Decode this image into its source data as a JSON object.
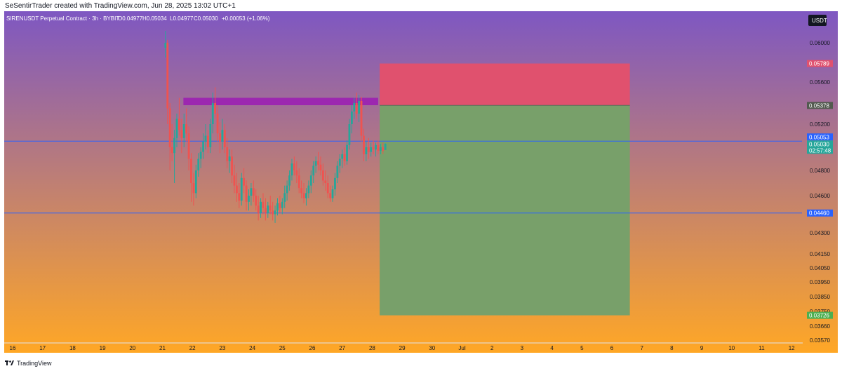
{
  "attribution": "SeSentirTrader created with TradingView.com, Jun 28, 2025 13:02 UTC+1",
  "footer": {
    "brand": "TradingView"
  },
  "colors": {
    "bg_top": "#7e57c2",
    "bg_bottom": "#ffa726",
    "up": "#26a69a",
    "down": "#ef5350",
    "stop_zone": "#e0516e",
    "target_zone": "#78a06a",
    "resistance_zone": "#9c27b0",
    "hline": "#2962ff"
  },
  "chart_data": {
    "type": "candlestick",
    "title": "SIRENUSDT Perpetual Contract · 3h · BYBIT",
    "ohlc_header": {
      "open": "O0.04977",
      "high": "H0.05034",
      "low": "L0.04977",
      "close": "C0.05030",
      "change": "+0.00053 (+1.06%)"
    },
    "currency": "USDT",
    "x_ticks": [
      "16",
      "17",
      "18",
      "19",
      "20",
      "21",
      "22",
      "23",
      "24",
      "25",
      "26",
      "27",
      "28",
      "29",
      "30",
      "Jul",
      "2",
      "3",
      "4",
      "5",
      "6",
      "7",
      "8",
      "9",
      "10",
      "11",
      "12"
    ],
    "y_ticks": [
      "0.06000",
      "0.05600",
      "0.05200",
      "0.04800",
      "0.04600",
      "0.04300",
      "0.04150",
      "0.04050",
      "0.03950",
      "0.03850",
      "0.03750",
      "0.03660",
      "0.03570"
    ],
    "price_tags": [
      {
        "label": "0.05789",
        "kind": "stop"
      },
      {
        "label": "0.05378",
        "kind": "entry"
      },
      {
        "label": "0.05053",
        "kind": "hline"
      },
      {
        "label": "0.05030",
        "kind": "last"
      },
      {
        "label": "02:57:48",
        "kind": "countdown"
      },
      {
        "label": "0.04460",
        "kind": "hline2"
      },
      {
        "label": "0.03726",
        "kind": "target"
      }
    ],
    "horizontal_lines": [
      0.05053,
      0.0446
    ],
    "resistance_zone": {
      "from_day": 21.7,
      "to_day": 28.2,
      "top": 0.0545,
      "bottom": 0.0538
    },
    "position": {
      "from_day": 28.25,
      "to_day": 36.6,
      "stop": 0.05789,
      "entry": 0.05378,
      "target": 0.03726
    },
    "candles": [
      {
        "d": 21.1,
        "o": 0.0595,
        "h": 0.062,
        "l": 0.0585,
        "c": 0.06
      },
      {
        "d": 21.17,
        "o": 0.06,
        "h": 0.0605,
        "l": 0.052,
        "c": 0.0535
      },
      {
        "d": 21.25,
        "o": 0.0535,
        "h": 0.054,
        "l": 0.048,
        "c": 0.05
      },
      {
        "d": 21.32,
        "o": 0.05,
        "h": 0.052,
        "l": 0.0488,
        "c": 0.0495
      },
      {
        "d": 21.4,
        "o": 0.0495,
        "h": 0.0515,
        "l": 0.047,
        "c": 0.0508
      },
      {
        "d": 21.48,
        "o": 0.0508,
        "h": 0.053,
        "l": 0.05,
        "c": 0.0525
      },
      {
        "d": 21.56,
        "o": 0.0525,
        "h": 0.0545,
        "l": 0.051,
        "c": 0.0515
      },
      {
        "d": 21.64,
        "o": 0.0515,
        "h": 0.0525,
        "l": 0.0495,
        "c": 0.0508
      },
      {
        "d": 21.72,
        "o": 0.0508,
        "h": 0.053,
        "l": 0.05,
        "c": 0.052
      },
      {
        "d": 21.8,
        "o": 0.052,
        "h": 0.0535,
        "l": 0.0505,
        "c": 0.0512
      },
      {
        "d": 21.88,
        "o": 0.0512,
        "h": 0.0518,
        "l": 0.048,
        "c": 0.049
      },
      {
        "d": 21.96,
        "o": 0.049,
        "h": 0.0495,
        "l": 0.0455,
        "c": 0.047
      },
      {
        "d": 22.04,
        "o": 0.047,
        "h": 0.0478,
        "l": 0.0452,
        "c": 0.0462
      },
      {
        "d": 22.12,
        "o": 0.0462,
        "h": 0.0485,
        "l": 0.0458,
        "c": 0.048
      },
      {
        "d": 22.2,
        "o": 0.048,
        "h": 0.0495,
        "l": 0.0475,
        "c": 0.049
      },
      {
        "d": 22.28,
        "o": 0.049,
        "h": 0.05,
        "l": 0.0482,
        "c": 0.0496
      },
      {
        "d": 22.36,
        "o": 0.0496,
        "h": 0.0512,
        "l": 0.049,
        "c": 0.0505
      },
      {
        "d": 22.44,
        "o": 0.0505,
        "h": 0.052,
        "l": 0.0498,
        "c": 0.051
      },
      {
        "d": 22.52,
        "o": 0.051,
        "h": 0.0515,
        "l": 0.0495,
        "c": 0.05
      },
      {
        "d": 22.6,
        "o": 0.05,
        "h": 0.0525,
        "l": 0.0495,
        "c": 0.052
      },
      {
        "d": 22.68,
        "o": 0.052,
        "h": 0.055,
        "l": 0.0512,
        "c": 0.054
      },
      {
        "d": 22.76,
        "o": 0.054,
        "h": 0.0555,
        "l": 0.0525,
        "c": 0.053
      },
      {
        "d": 22.84,
        "o": 0.053,
        "h": 0.0538,
        "l": 0.0505,
        "c": 0.0512
      },
      {
        "d": 22.92,
        "o": 0.0512,
        "h": 0.0522,
        "l": 0.0495,
        "c": 0.0505
      },
      {
        "d": 23.0,
        "o": 0.0505,
        "h": 0.0525,
        "l": 0.0498,
        "c": 0.0515
      },
      {
        "d": 23.08,
        "o": 0.0515,
        "h": 0.052,
        "l": 0.0495,
        "c": 0.05
      },
      {
        "d": 23.16,
        "o": 0.05,
        "h": 0.0508,
        "l": 0.0482,
        "c": 0.0488
      },
      {
        "d": 23.24,
        "o": 0.0488,
        "h": 0.0498,
        "l": 0.0478,
        "c": 0.0492
      },
      {
        "d": 23.32,
        "o": 0.0492,
        "h": 0.0498,
        "l": 0.047,
        "c": 0.0476
      },
      {
        "d": 23.4,
        "o": 0.0476,
        "h": 0.0485,
        "l": 0.0462,
        "c": 0.0468
      },
      {
        "d": 23.48,
        "o": 0.0468,
        "h": 0.0478,
        "l": 0.0455,
        "c": 0.0462
      },
      {
        "d": 23.56,
        "o": 0.0462,
        "h": 0.047,
        "l": 0.045,
        "c": 0.0456
      },
      {
        "d": 23.64,
        "o": 0.0456,
        "h": 0.0478,
        "l": 0.0452,
        "c": 0.0474
      },
      {
        "d": 23.72,
        "o": 0.0474,
        "h": 0.0482,
        "l": 0.0462,
        "c": 0.0468
      },
      {
        "d": 23.8,
        "o": 0.0468,
        "h": 0.0472,
        "l": 0.0448,
        "c": 0.0455
      },
      {
        "d": 23.88,
        "o": 0.0455,
        "h": 0.0465,
        "l": 0.0448,
        "c": 0.046
      },
      {
        "d": 23.96,
        "o": 0.046,
        "h": 0.047,
        "l": 0.0452,
        "c": 0.0466
      },
      {
        "d": 24.04,
        "o": 0.0466,
        "h": 0.0472,
        "l": 0.0455,
        "c": 0.046
      },
      {
        "d": 24.12,
        "o": 0.046,
        "h": 0.0465,
        "l": 0.0448,
        "c": 0.0452
      },
      {
        "d": 24.2,
        "o": 0.0452,
        "h": 0.046,
        "l": 0.044,
        "c": 0.0446
      },
      {
        "d": 24.28,
        "o": 0.0446,
        "h": 0.0458,
        "l": 0.0442,
        "c": 0.0455
      },
      {
        "d": 24.36,
        "o": 0.0455,
        "h": 0.0462,
        "l": 0.0445,
        "c": 0.045
      },
      {
        "d": 24.44,
        "o": 0.045,
        "h": 0.0458,
        "l": 0.044,
        "c": 0.0446
      },
      {
        "d": 24.52,
        "o": 0.0446,
        "h": 0.0455,
        "l": 0.0442,
        "c": 0.0452
      },
      {
        "d": 24.6,
        "o": 0.0452,
        "h": 0.046,
        "l": 0.0445,
        "c": 0.0448
      },
      {
        "d": 24.68,
        "o": 0.0448,
        "h": 0.0455,
        "l": 0.044,
        "c": 0.0445
      },
      {
        "d": 24.76,
        "o": 0.0445,
        "h": 0.0452,
        "l": 0.0438,
        "c": 0.0448
      },
      {
        "d": 24.84,
        "o": 0.0448,
        "h": 0.0458,
        "l": 0.0444,
        "c": 0.0454
      },
      {
        "d": 24.92,
        "o": 0.0454,
        "h": 0.046,
        "l": 0.0446,
        "c": 0.045
      },
      {
        "d": 25.0,
        "o": 0.045,
        "h": 0.0458,
        "l": 0.0445,
        "c": 0.0455
      },
      {
        "d": 25.08,
        "o": 0.0455,
        "h": 0.0468,
        "l": 0.045,
        "c": 0.0462
      },
      {
        "d": 25.16,
        "o": 0.0462,
        "h": 0.0472,
        "l": 0.0456,
        "c": 0.0468
      },
      {
        "d": 25.24,
        "o": 0.0468,
        "h": 0.048,
        "l": 0.0464,
        "c": 0.0476
      },
      {
        "d": 25.32,
        "o": 0.0476,
        "h": 0.049,
        "l": 0.0472,
        "c": 0.0486
      },
      {
        "d": 25.4,
        "o": 0.0486,
        "h": 0.0492,
        "l": 0.0476,
        "c": 0.048
      },
      {
        "d": 25.48,
        "o": 0.048,
        "h": 0.0488,
        "l": 0.047,
        "c": 0.0476
      },
      {
        "d": 25.56,
        "o": 0.0476,
        "h": 0.0482,
        "l": 0.0462,
        "c": 0.0466
      },
      {
        "d": 25.64,
        "o": 0.0466,
        "h": 0.0472,
        "l": 0.0458,
        "c": 0.0462
      },
      {
        "d": 25.72,
        "o": 0.0462,
        "h": 0.047,
        "l": 0.0454,
        "c": 0.0458
      },
      {
        "d": 25.8,
        "o": 0.0458,
        "h": 0.0466,
        "l": 0.0452,
        "c": 0.0462
      },
      {
        "d": 25.88,
        "o": 0.0462,
        "h": 0.0472,
        "l": 0.0458,
        "c": 0.0468
      },
      {
        "d": 25.96,
        "o": 0.0468,
        "h": 0.048,
        "l": 0.0462,
        "c": 0.0476
      },
      {
        "d": 26.04,
        "o": 0.0476,
        "h": 0.0488,
        "l": 0.047,
        "c": 0.0484
      },
      {
        "d": 26.12,
        "o": 0.0484,
        "h": 0.0492,
        "l": 0.0478,
        "c": 0.0488
      },
      {
        "d": 26.2,
        "o": 0.0488,
        "h": 0.0496,
        "l": 0.048,
        "c": 0.0485
      },
      {
        "d": 26.28,
        "o": 0.0485,
        "h": 0.0492,
        "l": 0.0476,
        "c": 0.048
      },
      {
        "d": 26.36,
        "o": 0.048,
        "h": 0.0486,
        "l": 0.0468,
        "c": 0.0472
      },
      {
        "d": 26.44,
        "o": 0.0472,
        "h": 0.048,
        "l": 0.0464,
        "c": 0.047
      },
      {
        "d": 26.52,
        "o": 0.047,
        "h": 0.0476,
        "l": 0.0458,
        "c": 0.0462
      },
      {
        "d": 26.6,
        "o": 0.0462,
        "h": 0.0468,
        "l": 0.0455,
        "c": 0.0458
      },
      {
        "d": 26.68,
        "o": 0.0458,
        "h": 0.0468,
        "l": 0.0455,
        "c": 0.0465
      },
      {
        "d": 26.76,
        "o": 0.0465,
        "h": 0.0478,
        "l": 0.046,
        "c": 0.0474
      },
      {
        "d": 26.84,
        "o": 0.0474,
        "h": 0.0488,
        "l": 0.047,
        "c": 0.0484
      },
      {
        "d": 26.92,
        "o": 0.0484,
        "h": 0.0494,
        "l": 0.0478,
        "c": 0.049
      },
      {
        "d": 27.0,
        "o": 0.049,
        "h": 0.0498,
        "l": 0.0482,
        "c": 0.0494
      },
      {
        "d": 27.08,
        "o": 0.0494,
        "h": 0.05,
        "l": 0.0484,
        "c": 0.0488
      },
      {
        "d": 27.16,
        "o": 0.0488,
        "h": 0.0506,
        "l": 0.0485,
        "c": 0.0502
      },
      {
        "d": 27.24,
        "o": 0.0502,
        "h": 0.0525,
        "l": 0.0498,
        "c": 0.052
      },
      {
        "d": 27.32,
        "o": 0.052,
        "h": 0.0538,
        "l": 0.0512,
        "c": 0.0532
      },
      {
        "d": 27.4,
        "o": 0.0532,
        "h": 0.0545,
        "l": 0.0525,
        "c": 0.054
      },
      {
        "d": 27.48,
        "o": 0.054,
        "h": 0.055,
        "l": 0.0525,
        "c": 0.053
      },
      {
        "d": 27.56,
        "o": 0.053,
        "h": 0.0548,
        "l": 0.0522,
        "c": 0.0542
      },
      {
        "d": 27.64,
        "o": 0.0542,
        "h": 0.0546,
        "l": 0.0505,
        "c": 0.051
      },
      {
        "d": 27.72,
        "o": 0.051,
        "h": 0.0516,
        "l": 0.0488,
        "c": 0.0494
      },
      {
        "d": 27.8,
        "o": 0.0494,
        "h": 0.0505,
        "l": 0.0488,
        "c": 0.05
      },
      {
        "d": 27.88,
        "o": 0.05,
        "h": 0.0508,
        "l": 0.049,
        "c": 0.0496
      },
      {
        "d": 27.96,
        "o": 0.0496,
        "h": 0.0504,
        "l": 0.0492,
        "c": 0.05
      },
      {
        "d": 28.04,
        "o": 0.05,
        "h": 0.0506,
        "l": 0.0494,
        "c": 0.0498
      },
      {
        "d": 28.12,
        "o": 0.0498,
        "h": 0.0504,
        "l": 0.0492,
        "c": 0.0502
      },
      {
        "d": 28.2,
        "o": 0.0502,
        "h": 0.0506,
        "l": 0.0494,
        "c": 0.0497
      },
      {
        "d": 28.28,
        "o": 0.0497,
        "h": 0.0503,
        "l": 0.0494,
        "c": 0.05
      },
      {
        "d": 28.36,
        "o": 0.05,
        "h": 0.0504,
        "l": 0.0494,
        "c": 0.0497
      },
      {
        "d": 28.44,
        "o": 0.04977,
        "h": 0.05034,
        "l": 0.04977,
        "c": 0.0503
      }
    ]
  }
}
